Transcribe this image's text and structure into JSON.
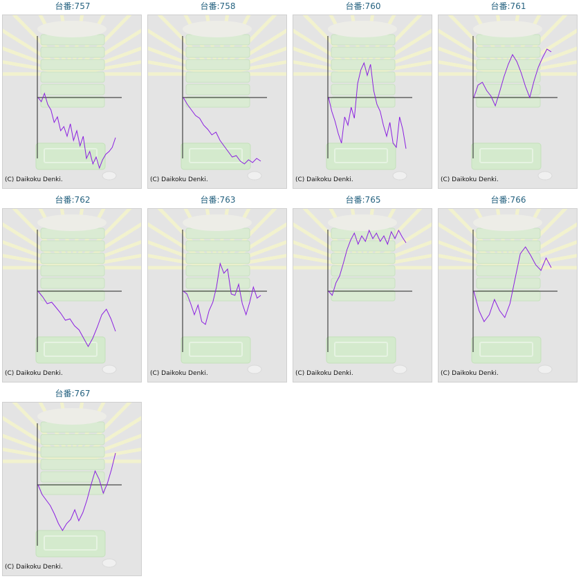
{
  "chart_data": [
    {
      "type": "line",
      "title": "台番:757",
      "series": [
        {
          "values": [
            0,
            -6,
            6,
            -10,
            -18,
            -36,
            -28,
            -48,
            -42,
            -56,
            -38,
            -62,
            -48,
            -70,
            -56,
            -88,
            -78,
            -96,
            -86,
            -102,
            -90,
            -82,
            -78,
            -72,
            -58
          ]
        }
      ],
      "credit": "(C) Daikoku Denki."
    },
    {
      "type": "line",
      "title": "台番:758",
      "series": [
        {
          "values": [
            0,
            -10,
            -18,
            -26,
            -30,
            -40,
            -46,
            -54,
            -50,
            -62,
            -70,
            -78,
            -86,
            -84,
            -92,
            -96,
            -90,
            -94,
            -88,
            -92
          ]
        }
      ],
      "credit": "(C) Daikoku Denki."
    },
    {
      "type": "line",
      "title": "台番:760",
      "series": [
        {
          "values": [
            0,
            -20,
            -34,
            -52,
            -66,
            -28,
            -40,
            -14,
            -30,
            20,
            40,
            50,
            32,
            48,
            10,
            -10,
            -20,
            -40,
            -56,
            -36,
            -66,
            -72,
            -28,
            -46,
            -74
          ]
        }
      ],
      "credit": "(C) Daikoku Denki."
    },
    {
      "type": "line",
      "title": "台番:761",
      "series": [
        {
          "values": [
            0,
            18,
            22,
            10,
            2,
            -12,
            8,
            30,
            48,
            62,
            52,
            36,
            16,
            0,
            24,
            44,
            58,
            70,
            66
          ]
        }
      ],
      "credit": "(C) Daikoku Denki."
    },
    {
      "type": "line",
      "title": "台番:762",
      "series": [
        {
          "values": [
            0,
            -8,
            -18,
            -16,
            -24,
            -32,
            -42,
            -40,
            -50,
            -56,
            -68,
            -80,
            -68,
            -52,
            -34,
            -26,
            -40,
            -58
          ]
        }
      ],
      "credit": "(C) Daikoku Denki."
    },
    {
      "type": "line",
      "title": "台番:763",
      "series": [
        {
          "values": [
            0,
            -4,
            -18,
            -34,
            -20,
            -44,
            -48,
            -28,
            -16,
            6,
            40,
            26,
            32,
            -4,
            -6,
            10,
            -18,
            -34,
            -16,
            6,
            -10,
            -6
          ]
        }
      ],
      "credit": "(C) Daikoku Denki."
    },
    {
      "type": "line",
      "title": "台番:765",
      "series": [
        {
          "values": [
            0,
            -6,
            12,
            22,
            40,
            60,
            74,
            84,
            68,
            80,
            72,
            88,
            76,
            84,
            72,
            80,
            68,
            86,
            76,
            88,
            78,
            70
          ]
        }
      ],
      "credit": "(C) Daikoku Denki."
    },
    {
      "type": "line",
      "title": "台番:766",
      "series": [
        {
          "values": [
            0,
            -28,
            -44,
            -34,
            -12,
            -28,
            -38,
            -18,
            18,
            54,
            64,
            52,
            38,
            30,
            48,
            34
          ]
        }
      ],
      "credit": "(C) Daikoku Denki."
    },
    {
      "type": "line",
      "title": "台番:767",
      "series": [
        {
          "values": [
            0,
            -14,
            -22,
            -30,
            -42,
            -56,
            -66,
            -56,
            -50,
            -36,
            -52,
            -40,
            -22,
            0,
            20,
            8,
            -12,
            2,
            22,
            46
          ]
        }
      ],
      "credit": "(C) Daikoku Denki."
    }
  ],
  "colors": {
    "line": "#8a1ee0",
    "title": "#24617f",
    "panel": "#e4e4e4",
    "axis": "#222222"
  }
}
